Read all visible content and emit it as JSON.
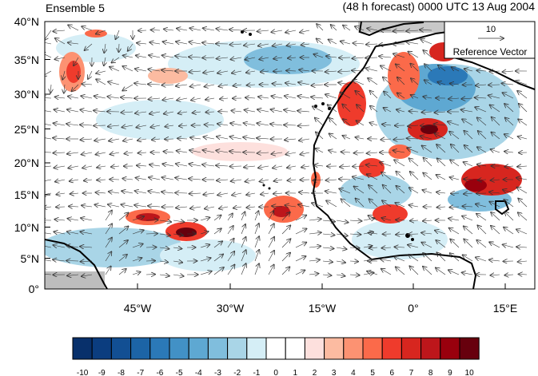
{
  "header": {
    "left_title": "Ensemble 5",
    "right_title": "(48 h forecast) 0000 UTC 13 Aug 2004"
  },
  "map": {
    "lat_labels": [
      "40°N",
      "35°N",
      "30°N",
      "25°N",
      "20°N",
      "15°N",
      "10°N",
      "5°N",
      "0°"
    ],
    "lon_labels": [
      "45°W",
      "30°W",
      "15°W",
      "0°",
      "15°E"
    ],
    "lat_range": [
      0,
      40
    ],
    "lon_range": [
      -60,
      20
    ]
  },
  "reference_vector": {
    "magnitude": "10",
    "label": "Reference Vector"
  },
  "colorbar": {
    "labels": [
      "-10",
      "-9",
      "-8",
      "-7",
      "-6",
      "-5",
      "-4",
      "-3",
      "-2",
      "-1",
      "0",
      "1",
      "2",
      "3",
      "4",
      "5",
      "6",
      "7",
      "8",
      "9",
      "10"
    ],
    "colors": [
      "#08306b",
      "#0b3d7f",
      "#124f93",
      "#1c64a6",
      "#2b79b8",
      "#4291c6",
      "#5ea8d2",
      "#80bedd",
      "#a9d5e7",
      "#d5eef6",
      "#ffffff",
      "#ffffff",
      "#fde0dd",
      "#fcbba1",
      "#fc9272",
      "#fb6a4a",
      "#ef3b2c",
      "#d7261f",
      "#bd161b",
      "#99000d",
      "#67000d"
    ]
  }
}
